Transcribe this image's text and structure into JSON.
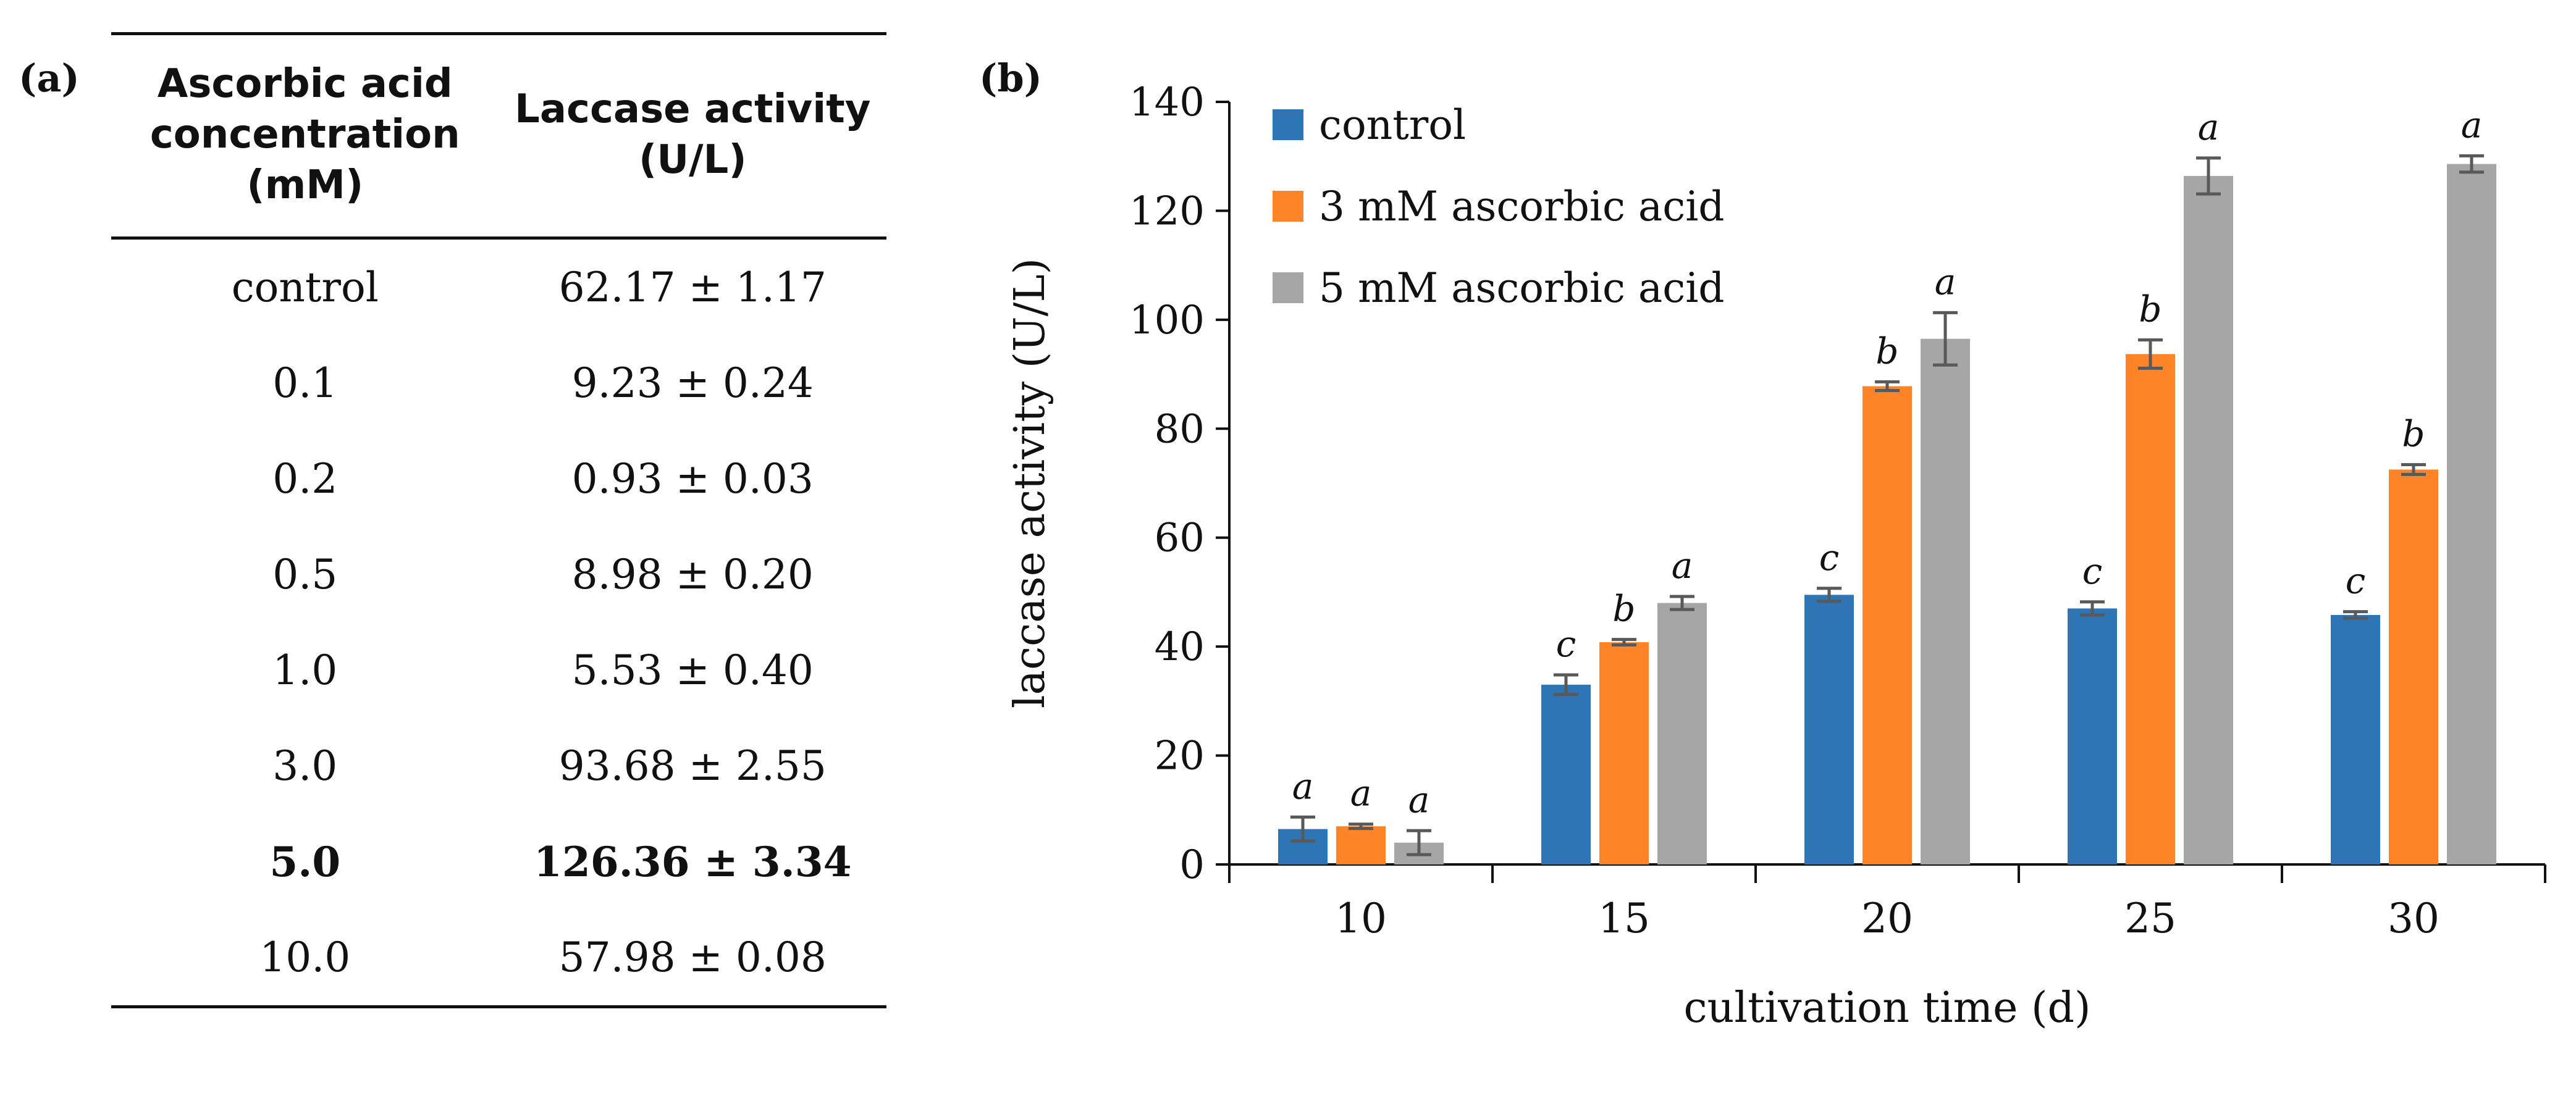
{
  "panel_a": {
    "label": "(a)",
    "headers": [
      "Ascorbic acid concentration (mM)",
      "Laccase activity (U/L)"
    ],
    "rows": [
      {
        "concentration": "control",
        "activity": "62.17 ± 1.17",
        "bold": false
      },
      {
        "concentration": "0.1",
        "activity": "9.23 ± 0.24",
        "bold": false
      },
      {
        "concentration": "0.2",
        "activity": "0.93 ± 0.03",
        "bold": false
      },
      {
        "concentration": "0.5",
        "activity": "8.98 ± 0.20",
        "bold": false
      },
      {
        "concentration": "1.0",
        "activity": "5.53 ± 0.40",
        "bold": false
      },
      {
        "concentration": "3.0",
        "activity": "93.68 ± 2.55",
        "bold": false
      },
      {
        "concentration": "5.0",
        "activity": "126.36 ± 3.34",
        "bold": true
      },
      {
        "concentration": "10.0",
        "activity": "57.98 ± 0.08",
        "bold": false
      }
    ]
  },
  "chart_data": {
    "type": "bar",
    "panel_label": "(b)",
    "title": "",
    "xlabel": "cultivation time (d)",
    "ylabel": "laccase activity (U/L)",
    "ylim": [
      0,
      140
    ],
    "yticks": [
      0,
      20,
      40,
      60,
      80,
      100,
      120,
      140
    ],
    "grid": false,
    "legend_position": "top-left",
    "categories": [
      "10",
      "15",
      "20",
      "25",
      "30"
    ],
    "series": [
      {
        "name": "control",
        "color": "#2E75B6",
        "values": [
          6.5,
          33.0,
          49.5,
          47.0,
          45.8
        ],
        "errors": [
          2.2,
          1.8,
          1.2,
          1.2,
          0.6
        ],
        "letters": [
          "a",
          "c",
          "c",
          "c",
          "c"
        ]
      },
      {
        "name": "3 mM ascorbic acid",
        "color": "#FF8427",
        "values": [
          7.0,
          40.8,
          87.8,
          93.7,
          72.5
        ],
        "errors": [
          0.4,
          0.5,
          0.8,
          2.6,
          0.9
        ],
        "letters": [
          "a",
          "b",
          "b",
          "b",
          "b"
        ]
      },
      {
        "name": "5 mM ascorbic acid",
        "color": "#A6A6A6",
        "values": [
          4.0,
          48.0,
          96.5,
          126.4,
          128.6
        ],
        "errors": [
          2.2,
          1.2,
          4.8,
          3.3,
          1.5
        ],
        "letters": [
          "a",
          "a",
          "a",
          "a",
          "a"
        ]
      }
    ],
    "error_bar_color": "#595959"
  }
}
